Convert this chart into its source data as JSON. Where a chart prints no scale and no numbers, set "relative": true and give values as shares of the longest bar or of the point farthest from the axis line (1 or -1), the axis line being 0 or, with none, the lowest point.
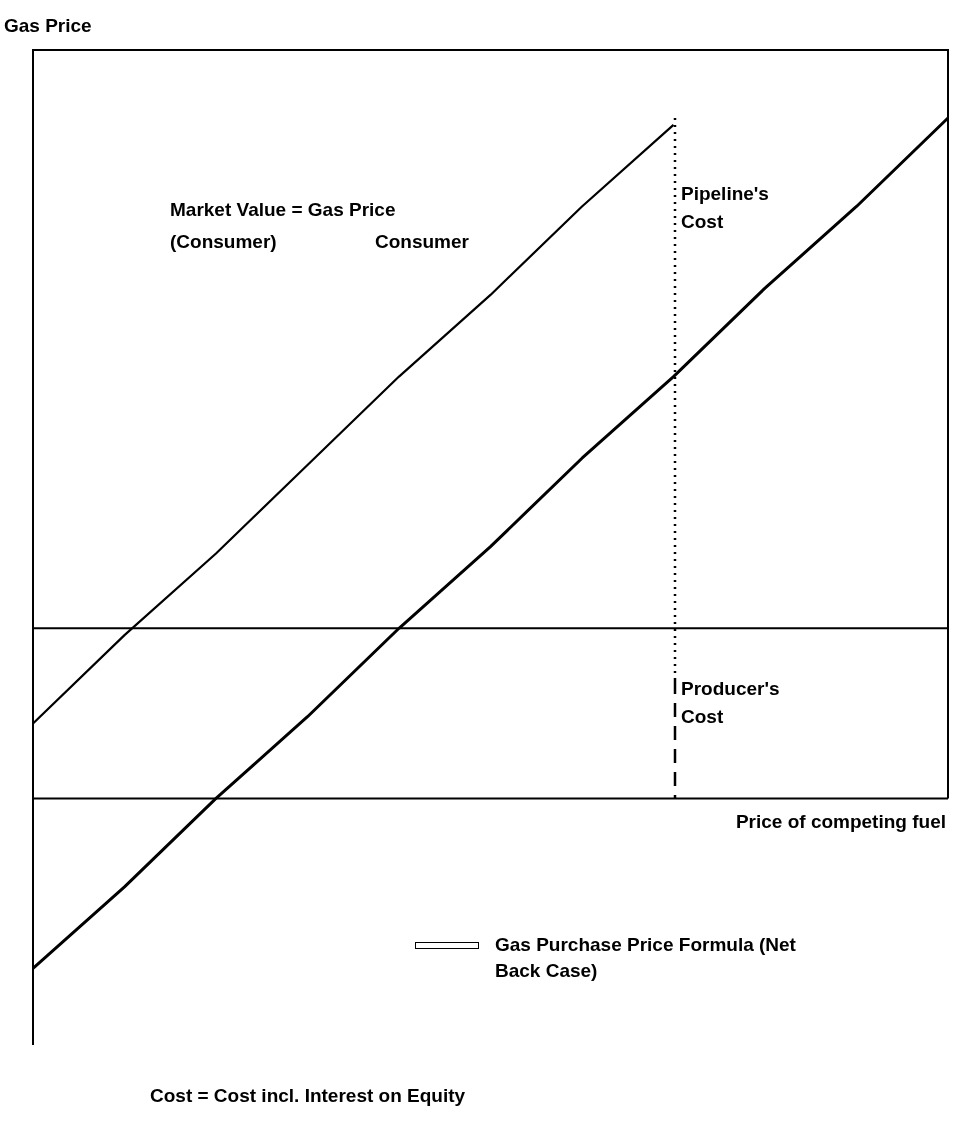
{
  "chart_data": {
    "type": "line",
    "relative": true,
    "ylabel": "Gas Price",
    "xlabel": "Price of competing fuel",
    "categories": [
      null,
      null,
      null,
      null,
      null,
      null,
      null,
      null,
      null,
      null,
      null
    ],
    "tick_labels": false,
    "legend": "bottom right",
    "marker": "none",
    "series": [
      {
        "color": "#000000",
        "values": [
          0.11,
          0.24,
          0.36,
          0.49,
          0.62,
          0.74,
          0.87,
          0.99,
          null,
          null,
          null
        ]
      },
      {
        "name": "Gas Purchase Price Formula (Net Back Case)",
        "color": "#000000",
        "values": [
          -0.25,
          -0.13,
          0.0,
          0.12,
          0.25,
          0.37,
          0.5,
          0.62,
          0.75,
          0.87,
          1.0
        ]
      }
    ],
    "ref_lines": [
      {
        "axis": "y",
        "value": 0.25,
        "color": "#000000"
      }
    ],
    "annotations": [
      "Market Value = Gas Price",
      "(Consumer)",
      "Consumer",
      "Pipeline's\nCost",
      "Producer's\nCost",
      "Cost = Cost incl. Interest on Equity"
    ]
  }
}
